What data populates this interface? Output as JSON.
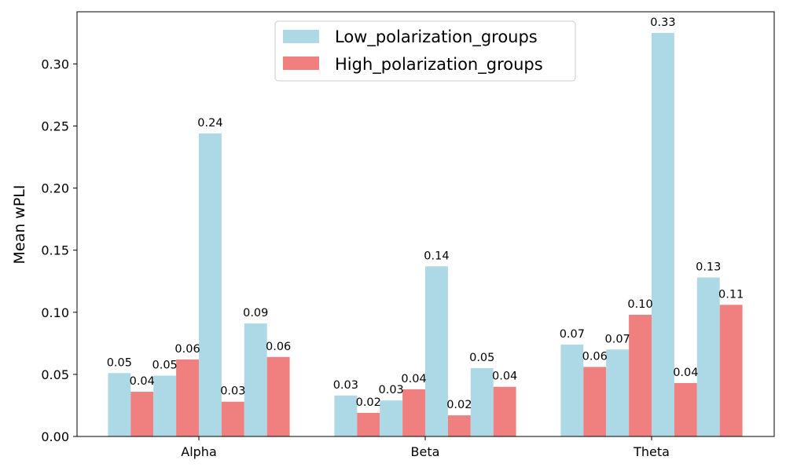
{
  "chart_data": {
    "type": "bar",
    "title": "",
    "xlabel": "",
    "ylabel": "Mean wPLI",
    "ylim": [
      0,
      0.342
    ],
    "yticks": [
      "0.00",
      "0.05",
      "0.10",
      "0.15",
      "0.20",
      "0.25",
      "0.30"
    ],
    "categories": [
      "Alpha",
      "Beta",
      "Theta"
    ],
    "grid": false,
    "legend_position": "top-center",
    "series": [
      {
        "name": "Low_polarization_groups",
        "color": "#add8e6"
      },
      {
        "name": "High_polarization_groups",
        "color": "#f08080"
      }
    ],
    "bars": [
      [
        {
          "series": 0,
          "value": 0.051,
          "label": "0.05"
        },
        {
          "series": 1,
          "value": 0.036,
          "label": "0.04"
        },
        {
          "series": 0,
          "value": 0.049,
          "label": "0.05"
        },
        {
          "series": 1,
          "value": 0.062,
          "label": "0.06"
        },
        {
          "series": 0,
          "value": 0.244,
          "label": "0.24"
        },
        {
          "series": 1,
          "value": 0.028,
          "label": "0.03"
        },
        {
          "series": 0,
          "value": 0.091,
          "label": "0.09"
        },
        {
          "series": 1,
          "value": 0.064,
          "label": "0.06"
        }
      ],
      [
        {
          "series": 0,
          "value": 0.033,
          "label": "0.03"
        },
        {
          "series": 1,
          "value": 0.019,
          "label": "0.02"
        },
        {
          "series": 0,
          "value": 0.029,
          "label": "0.03"
        },
        {
          "series": 1,
          "value": 0.038,
          "label": "0.04"
        },
        {
          "series": 0,
          "value": 0.137,
          "label": "0.14"
        },
        {
          "series": 1,
          "value": 0.017,
          "label": "0.02"
        },
        {
          "series": 0,
          "value": 0.055,
          "label": "0.05"
        },
        {
          "series": 1,
          "value": 0.04,
          "label": "0.04"
        }
      ],
      [
        {
          "series": 0,
          "value": 0.074,
          "label": "0.07"
        },
        {
          "series": 1,
          "value": 0.056,
          "label": "0.06"
        },
        {
          "series": 0,
          "value": 0.07,
          "label": "0.07"
        },
        {
          "series": 1,
          "value": 0.098,
          "label": "0.10"
        },
        {
          "series": 0,
          "value": 0.325,
          "label": "0.33"
        },
        {
          "series": 1,
          "value": 0.043,
          "label": "0.04"
        },
        {
          "series": 0,
          "value": 0.128,
          "label": "0.13"
        },
        {
          "series": 1,
          "value": 0.106,
          "label": "0.11"
        }
      ]
    ]
  }
}
